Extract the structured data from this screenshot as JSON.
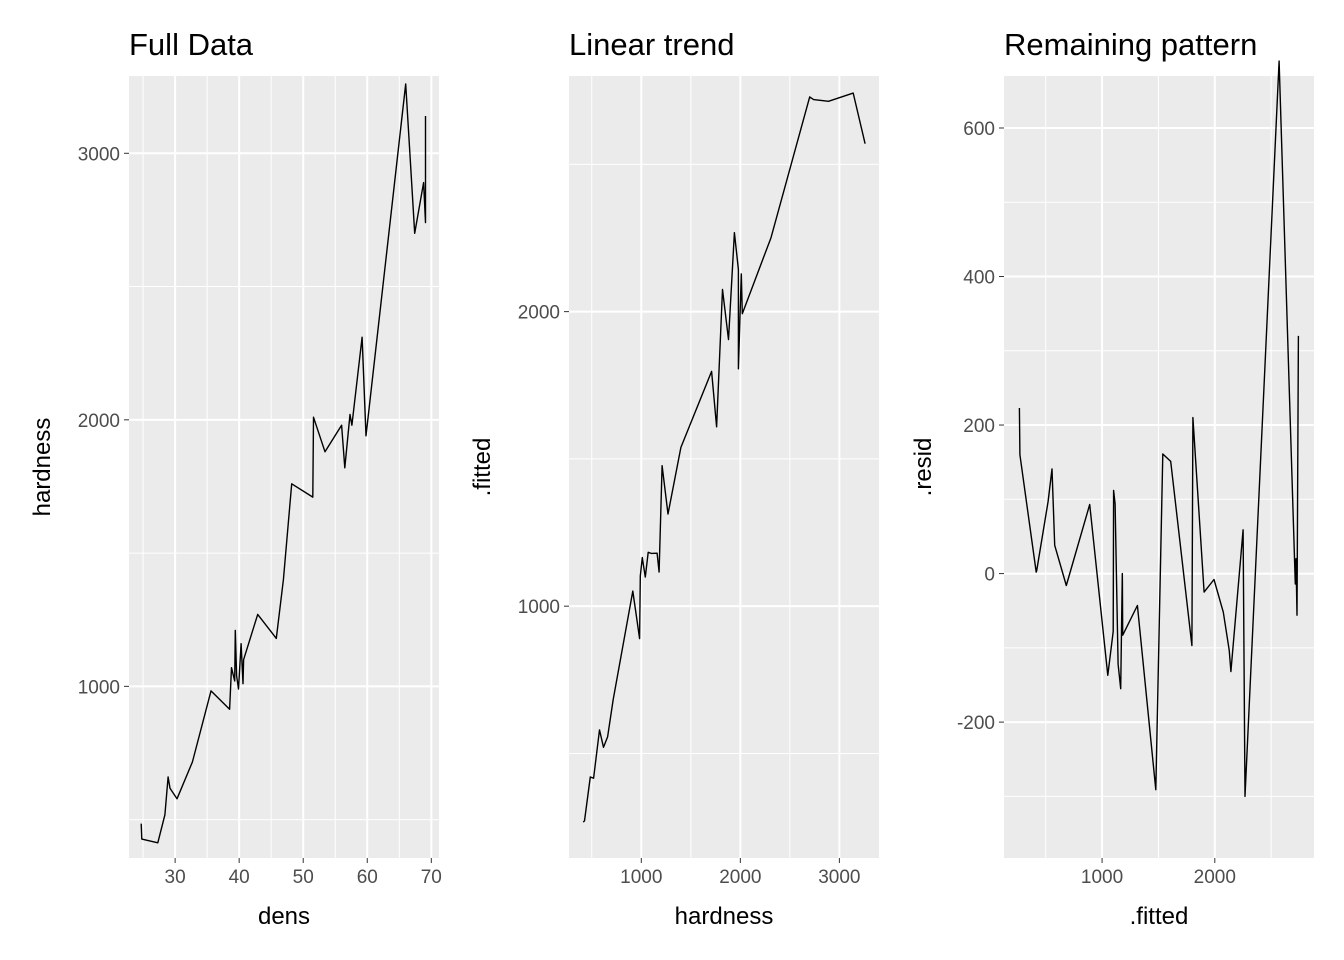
{
  "chart_data": [
    {
      "type": "line",
      "title": "Full Data",
      "xlabel": "dens",
      "ylabel": "hardness",
      "xlim": [
        22.8,
        71.2
      ],
      "ylim": [
        356,
        3290
      ],
      "xticks": [
        30,
        40,
        50,
        60,
        70
      ],
      "yticks": [
        1000,
        2000,
        3000
      ],
      "xtick_labels": [
        "30",
        "40",
        "50",
        "60",
        "70"
      ],
      "ytick_labels": [
        "1000",
        "2000",
        "3000"
      ],
      "grid": true,
      "series": [
        {
          "x": [
            24.7,
            24.8,
            27.3,
            28.4,
            28.9,
            29.2,
            30.3,
            32.7,
            35.6,
            38.5,
            38.8,
            39.3,
            39.4,
            39.6,
            39.9,
            40.3,
            40.6,
            40.7,
            42.9,
            45.8,
            46.9,
            48.2,
            51.5,
            51.6,
            53.4,
            56.0,
            56.5,
            57.3,
            57.6,
            59.2,
            59.8,
            66.0,
            67.4,
            68.8,
            69.1,
            69.1
          ],
          "y": [
            485,
            427,
            413,
            518,
            660,
            618,
            578,
            716,
            983,
            914,
            1070,
            1020,
            1210,
            1040,
            990,
            1160,
            1010,
            1100,
            1270,
            1180,
            1400,
            1760,
            1710,
            2010,
            1880,
            1980,
            1820,
            2020,
            1980,
            2310,
            1940,
            3260,
            2700,
            2890,
            2740,
            3140
          ]
        }
      ]
    },
    {
      "type": "line",
      "title": "Linear trend",
      "xlabel": "hardness",
      "ylabel": ".fitted",
      "xlim": [
        270,
        3400
      ],
      "ylim": [
        145,
        2800
      ],
      "xticks": [
        1000,
        2000,
        3000
      ],
      "yticks": [
        1000,
        2000
      ],
      "xtick_labels": [
        "1000",
        "2000",
        "3000"
      ],
      "ytick_labels": [
        "1000",
        "2000"
      ],
      "grid": true,
      "series": [
        {
          "x": [
            413,
            427,
            485,
            518,
            578,
            618,
            660,
            716,
            914,
            983,
            990,
            1010,
            1020,
            1040,
            1070,
            1100,
            1160,
            1180,
            1210,
            1270,
            1400,
            1710,
            1760,
            1820,
            1880,
            1940,
            1980,
            1980,
            2010,
            2020,
            2310,
            2700,
            2740,
            2890,
            3140,
            3260
          ],
          "y": [
            267,
            271,
            420,
            416,
            580,
            521,
            556,
            683,
            1051,
            890,
            1102,
            1165,
            1142,
            1099,
            1183,
            1179,
            1180,
            1116,
            1477,
            1313,
            1539,
            1797,
            1609,
            2075,
            1905,
            2268,
            2143,
            1806,
            2128,
            1993,
            2251,
            2729,
            2720,
            2714,
            2742,
            2570
          ]
        }
      ]
    },
    {
      "type": "line",
      "title": "Remaining pattern",
      "xlabel": ".fitted",
      "ylabel": ".resid",
      "xlim": [
        130,
        2880
      ],
      "ylim": [
        -383,
        670
      ],
      "xticks": [
        1000,
        2000
      ],
      "yticks": [
        -200,
        0,
        200,
        400,
        600
      ],
      "xtick_labels": [
        "1000",
        "2000"
      ],
      "ytick_labels": [
        "-200",
        "0",
        "200",
        "400",
        "600"
      ],
      "grid": true,
      "series": [
        {
          "x": [
            267,
            271,
            416,
            420,
            521,
            556,
            580,
            683,
            890,
            1051,
            1099,
            1102,
            1116,
            1142,
            1165,
            1179,
            1180,
            1183,
            1313,
            1477,
            1539,
            1609,
            1797,
            1806,
            1905,
            1993,
            2075,
            2128,
            2143,
            2251,
            2268,
            2570,
            2714,
            2720,
            2729,
            2742
          ],
          "y": [
            223,
            160,
            2,
            4,
            97,
            141,
            38,
            -16,
            93,
            -137,
            -78,
            112,
            94,
            -122,
            -155,
            0,
            -10,
            -83,
            -43,
            -291,
            161,
            151,
            -97,
            210,
            -25,
            -8,
            -52,
            -103,
            -132,
            59,
            -300,
            690,
            -14,
            20,
            -56,
            320
          ]
        }
      ]
    }
  ]
}
